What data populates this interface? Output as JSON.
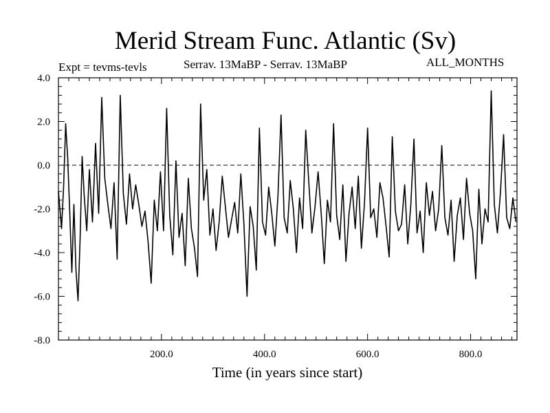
{
  "header": {
    "title": "Merid Stream Func. Atlantic (Sv)",
    "experiment": "Expt = tevms-tevls",
    "comparison": "Serrav.   13MaBP - Serrav.   13MaBP",
    "period": "ALL_MONTHS"
  },
  "chart_data": {
    "type": "line",
    "title": "Merid Stream Func. Atlantic (Sv)",
    "xlabel": "Time (in years since start)",
    "ylabel": "",
    "xlim": [
      0,
      890
    ],
    "ylim": [
      -8.0,
      4.0
    ],
    "x_ticks": [
      200.0,
      400.0,
      600.0,
      800.0
    ],
    "x_tick_labels": [
      "200.0",
      "400.0",
      "600.0",
      "800.0"
    ],
    "y_ticks": [
      -8.0,
      -6.0,
      -4.0,
      -2.0,
      0.0,
      2.0,
      4.0
    ],
    "y_tick_labels": [
      "-8.0",
      "-6.0",
      "-4.0",
      "-2.0",
      "0.0",
      "2.0",
      "4.0"
    ],
    "reference_line": {
      "y": 0.0,
      "style": "dashed"
    },
    "series": [
      {
        "name": "Merid Stream Func. Atlantic",
        "x": [
          0,
          6,
          10,
          14,
          18,
          22,
          26,
          30,
          34,
          38,
          42,
          46,
          50,
          55,
          60,
          66,
          72,
          78,
          84,
          90,
          96,
          102,
          108,
          114,
          120,
          126,
          132,
          138,
          144,
          150,
          156,
          162,
          168,
          174,
          180,
          186,
          192,
          198,
          204,
          210,
          216,
          222,
          228,
          234,
          240,
          246,
          252,
          258,
          264,
          270,
          276,
          282,
          288,
          294,
          300,
          306,
          312,
          318,
          324,
          330,
          336,
          342,
          348,
          354,
          360,
          366,
          372,
          378,
          384,
          390,
          396,
          402,
          408,
          414,
          420,
          426,
          432,
          438,
          444,
          450,
          456,
          462,
          468,
          474,
          480,
          486,
          492,
          498,
          504,
          510,
          516,
          522,
          528,
          534,
          540,
          546,
          552,
          558,
          564,
          570,
          576,
          582,
          588,
          594,
          600,
          606,
          612,
          618,
          624,
          630,
          636,
          642,
          648,
          654,
          660,
          666,
          672,
          678,
          684,
          690,
          696,
          702,
          708,
          714,
          720,
          726,
          732,
          738,
          744,
          750,
          756,
          762,
          768,
          774,
          780,
          786,
          792,
          798,
          804,
          810,
          816,
          822,
          828,
          834,
          840,
          846,
          852,
          858,
          864,
          870,
          876,
          882,
          888
        ],
        "values": [
          -1.2,
          -2.9,
          -1.0,
          1.9,
          0.3,
          -2.2,
          -4.9,
          -1.8,
          -4.8,
          -6.2,
          -3.4,
          0.4,
          -1.4,
          -3.0,
          -0.2,
          -2.6,
          1.0,
          -2.2,
          3.1,
          -0.6,
          -1.8,
          -2.9,
          -0.8,
          -4.3,
          3.2,
          -1.3,
          -2.7,
          -0.4,
          -2.0,
          -0.9,
          -1.8,
          -2.8,
          -2.1,
          -3.5,
          -5.4,
          -1.6,
          -3.0,
          -0.3,
          -3.0,
          2.6,
          -2.3,
          -4.1,
          0.2,
          -3.3,
          -2.2,
          -4.6,
          -0.6,
          -2.9,
          -3.8,
          -5.1,
          2.8,
          -1.6,
          -0.2,
          -3.2,
          -2.0,
          -3.9,
          -2.6,
          -0.5,
          -1.9,
          -3.3,
          -2.5,
          -1.7,
          -3.1,
          -0.4,
          -2.7,
          -6.0,
          -1.9,
          -2.8,
          -4.8,
          1.7,
          -2.6,
          -3.2,
          -1.0,
          -2.2,
          -3.7,
          -1.4,
          2.3,
          -2.4,
          -3.1,
          -0.7,
          -2.0,
          -4.0,
          -1.5,
          -2.9,
          1.6,
          -0.8,
          -3.1,
          -1.9,
          -0.3,
          -2.2,
          -4.5,
          -1.6,
          -2.6,
          1.9,
          -2.3,
          -3.4,
          -0.9,
          -4.4,
          -2.2,
          -1.0,
          -2.9,
          -0.5,
          -3.8,
          -1.7,
          1.7,
          -2.4,
          -2.0,
          -3.3,
          -0.8,
          -1.5,
          -2.8,
          -4.2,
          1.3,
          -2.1,
          -3.0,
          -2.7,
          -0.9,
          -3.6,
          -1.8,
          1.2,
          -3.1,
          -2.1,
          -4.0,
          -0.8,
          -2.3,
          -1.2,
          -3.0,
          -2.0,
          0.9,
          -2.4,
          -3.2,
          -1.6,
          -4.4,
          -2.3,
          -1.5,
          -3.4,
          -0.6,
          -2.2,
          -3.0,
          -5.2,
          -1.1,
          -3.6,
          -2.0,
          -2.6,
          3.4,
          -1.8,
          -3.1,
          -1.2,
          1.4,
          -2.4,
          -2.9,
          -1.5,
          -2.6
        ]
      }
    ]
  }
}
